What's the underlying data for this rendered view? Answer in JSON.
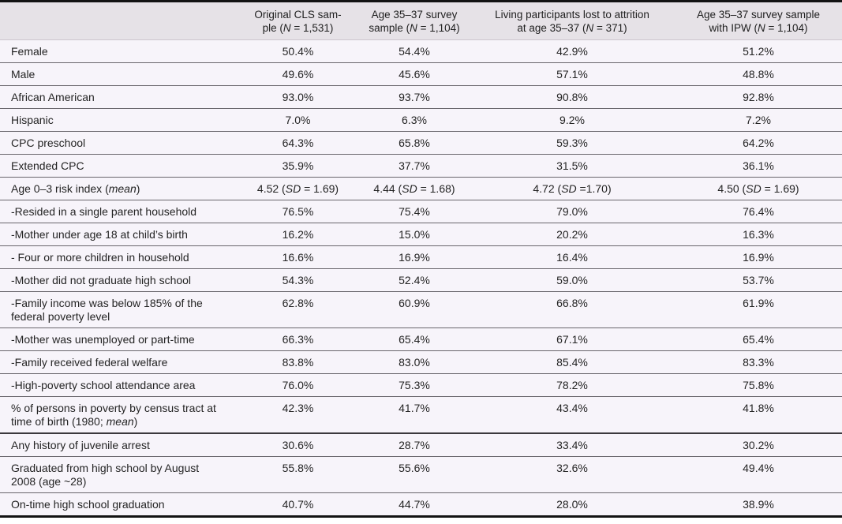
{
  "table": {
    "title_semantic": "Sample characteristics and attrition comparison table",
    "header": {
      "label_column": "",
      "columns": [
        {
          "lines": [
            "Original CLS sam-",
            "ple (*N* = 1,531)"
          ]
        },
        {
          "lines": [
            "Age 35–37 survey",
            "sample (*N* = 1,104)"
          ]
        },
        {
          "lines": [
            "Living participants lost to attrition",
            "at age 35–37 (*N* = 371)"
          ]
        },
        {
          "lines": [
            "Age 35–37 survey sample",
            "with IPW (*N* = 1,104)"
          ]
        }
      ]
    },
    "rows": [
      {
        "label": "Female",
        "values": [
          "50.4%",
          "54.4%",
          "42.9%",
          "51.2%"
        ]
      },
      {
        "label": "Male",
        "values": [
          "49.6%",
          "45.6%",
          "57.1%",
          "48.8%"
        ]
      },
      {
        "label": "African American",
        "values": [
          "93.0%",
          "93.7%",
          "90.8%",
          "92.8%"
        ]
      },
      {
        "label": "Hispanic",
        "values": [
          "7.0%",
          "6.3%",
          "9.2%",
          "7.2%"
        ]
      },
      {
        "label": "CPC preschool",
        "values": [
          "64.3%",
          "65.8%",
          "59.3%",
          "64.2%"
        ]
      },
      {
        "label": "Extended CPC",
        "values": [
          "35.9%",
          "37.7%",
          "31.5%",
          "36.1%"
        ]
      },
      {
        "label": "Age 0–3 risk index (*mean*)",
        "values": [
          "4.52 (*SD* = 1.69)",
          "4.44 (*SD* = 1.68)",
          "4.72 (*SD* =1.70)",
          "4.50 (*SD* = 1.69)"
        ]
      },
      {
        "label": "-Resided in a single parent household",
        "values": [
          "76.5%",
          "75.4%",
          "79.0%",
          "76.4%"
        ]
      },
      {
        "label": "-Mother under age 18 at child’s birth",
        "values": [
          "16.2%",
          "15.0%",
          "20.2%",
          "16.3%"
        ]
      },
      {
        "label": "- Four or more children in household",
        "values": [
          "16.6%",
          "16.9%",
          "16.4%",
          "16.9%"
        ]
      },
      {
        "label": "-Mother did not graduate high school",
        "values": [
          "54.3%",
          "52.4%",
          "59.0%",
          "53.7%"
        ]
      },
      {
        "label": "-Family income was below 185% of the federal poverty level",
        "values": [
          "62.8%",
          "60.9%",
          "66.8%",
          "61.9%"
        ]
      },
      {
        "label": "-Mother was unemployed or part-time",
        "values": [
          "66.3%",
          "65.4%",
          "67.1%",
          "65.4%"
        ]
      },
      {
        "label": "-Family received federal welfare",
        "values": [
          "83.8%",
          "83.0%",
          "85.4%",
          "83.3%"
        ]
      },
      {
        "label": "-High-poverty school attendance area",
        "values": [
          "76.0%",
          "75.3%",
          "78.2%",
          "75.8%"
        ]
      },
      {
        "label": "% of persons in poverty by census tract at time of birth (1980; *mean*)",
        "values": [
          "42.3%",
          "41.7%",
          "43.4%",
          "41.8%"
        ]
      },
      {
        "label": "Any history of juvenile arrest",
        "values": [
          "30.6%",
          "28.7%",
          "33.4%",
          "30.2%"
        ],
        "section_break": true
      },
      {
        "label": "Graduated from high school by August 2008 (age ~28)",
        "values": [
          "55.8%",
          "55.6%",
          "32.6%",
          "49.4%"
        ]
      },
      {
        "label": "On-time high school graduation",
        "values": [
          "40.7%",
          "44.7%",
          "28.0%",
          "38.9%"
        ]
      }
    ]
  },
  "colors": {
    "header_background": "#e6e2e7",
    "row_background": "#f7f4fa",
    "row_rule": "#69666c",
    "section_rule": "#3b383d",
    "outer_rule": "#131313",
    "text": "#242424"
  }
}
